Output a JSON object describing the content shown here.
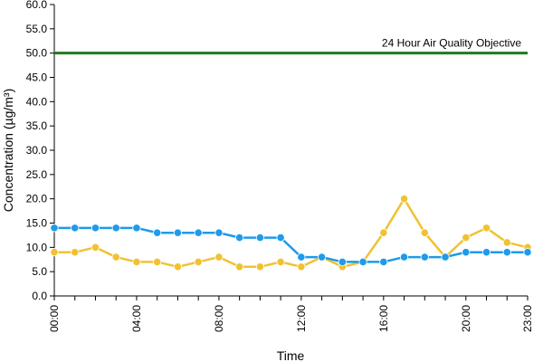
{
  "chart_data": {
    "type": "line",
    "title": "",
    "xlabel": "Time",
    "ylabel": "Concentration (µg/m³)",
    "ylim": [
      0,
      60
    ],
    "y_ticks": [
      "0.0",
      "5.0",
      "10.0",
      "15.0",
      "20.0",
      "25.0",
      "30.0",
      "35.0",
      "40.0",
      "45.0",
      "50.0",
      "55.0",
      "60.0"
    ],
    "x_tick_labels": [
      "00:00",
      "04:00",
      "08:00",
      "12:00",
      "16:00",
      "20:00",
      "23:00"
    ],
    "x_tick_hours": [
      0,
      4,
      8,
      12,
      16,
      20,
      23
    ],
    "x": [
      0,
      1,
      2,
      3,
      4,
      5,
      6,
      7,
      8,
      9,
      10,
      11,
      12,
      13,
      14,
      15,
      16,
      17,
      18,
      19,
      20,
      21,
      22,
      23
    ],
    "grid": false,
    "series": [
      {
        "color": "#F0C232",
        "values": [
          9,
          9,
          10,
          8,
          7,
          7,
          6,
          7,
          8,
          6,
          6,
          7,
          6,
          8,
          6,
          7,
          13,
          20,
          13,
          8,
          12,
          14,
          11,
          10
        ]
      },
      {
        "color": "#1E9BEA",
        "values": [
          14,
          14,
          14,
          14,
          14,
          13,
          13,
          13,
          13,
          12,
          12,
          12,
          8,
          8,
          7,
          7,
          7,
          8,
          8,
          8,
          9,
          9,
          9,
          9
        ]
      }
    ],
    "objective": {
      "label": "24 Hour Air Quality Objective",
      "value": 50,
      "color": "#1E7A1E"
    }
  }
}
